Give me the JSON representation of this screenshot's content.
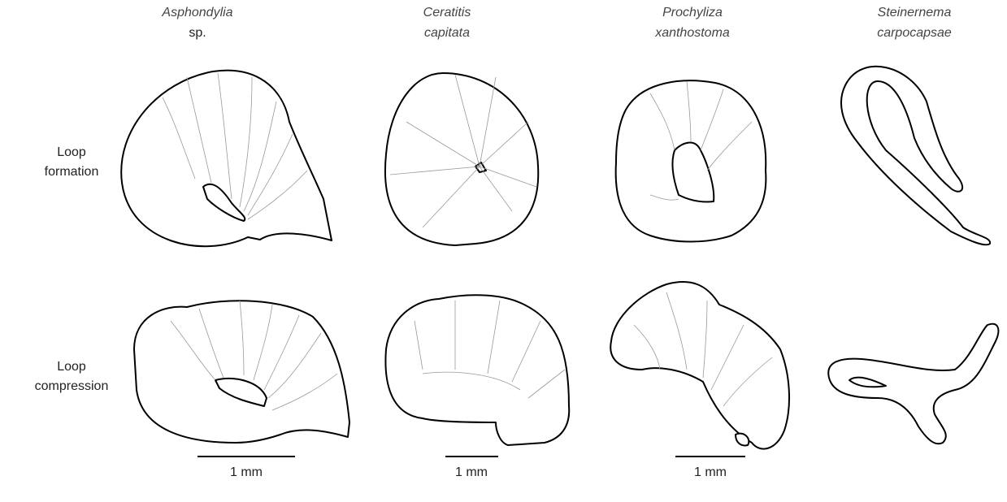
{
  "columns": [
    {
      "genus": "Asphondylia",
      "species": "sp."
    },
    {
      "genus": "Ceratitis",
      "species": "capitata"
    },
    {
      "genus": "Prochyliza",
      "species": "xanthostoma"
    },
    {
      "genus": "Steinernema",
      "species": "carpocapsae"
    }
  ],
  "rows": [
    {
      "line1": "Loop",
      "line2": "formation"
    },
    {
      "line1": "Loop",
      "line2": "compression"
    }
  ],
  "scale_bars": [
    "1 mm",
    "1 mm",
    "1 mm"
  ]
}
